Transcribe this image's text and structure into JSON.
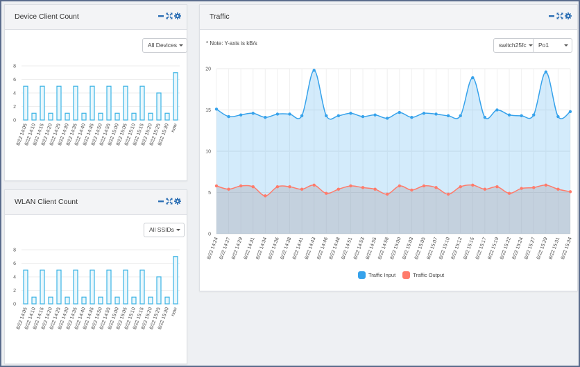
{
  "device_panel": {
    "title": "Device Client Count",
    "filter": "All Devices",
    "chart_data": {
      "type": "bar",
      "categories": [
        "8/22 14:05",
        "8/22 14:10",
        "8/22 14:15",
        "8/22 14:20",
        "8/22 14:25",
        "8/22 14:30",
        "8/22 14:35",
        "8/22 14:40",
        "8/22 14:45",
        "8/22 14:50",
        "8/22 14:55",
        "8/22 15:00",
        "8/22 15:05",
        "8/22 15:10",
        "8/22 15:15",
        "8/22 15:20",
        "8/22 15:25",
        "8/22 15:30",
        "now"
      ],
      "values": [
        5,
        1,
        5,
        1,
        5,
        1,
        5,
        1,
        5,
        1,
        5,
        1,
        5,
        1,
        5,
        1,
        4,
        1,
        7
      ],
      "yticks": [
        0,
        2,
        4,
        6,
        8
      ],
      "ylim": [
        0,
        8
      ],
      "colors": {
        "bar_fill": "#e9f7fc",
        "bar_stroke": "#3bb4e5"
      }
    }
  },
  "wlan_panel": {
    "title": "WLAN Client Count",
    "filter": "All SSIDs",
    "chart_data": {
      "type": "bar",
      "categories": [
        "8/22 14:05",
        "8/22 14:10",
        "8/22 14:15",
        "8/22 14:20",
        "8/22 14:25",
        "8/22 14:30",
        "8/22 14:35",
        "8/22 14:40",
        "8/22 14:45",
        "8/22 14:50",
        "8/22 14:55",
        "8/22 15:00",
        "8/22 15:05",
        "8/22 15:10",
        "8/22 15:15",
        "8/22 15:20",
        "8/22 15:25",
        "8/22 15:30",
        "now"
      ],
      "values": [
        5,
        1,
        5,
        1,
        5,
        1,
        5,
        1,
        5,
        1,
        5,
        1,
        5,
        1,
        5,
        1,
        4,
        1,
        7
      ],
      "yticks": [
        0,
        2,
        4,
        6,
        8
      ],
      "ylim": [
        0,
        8
      ],
      "colors": {
        "bar_fill": "#e9f7fc",
        "bar_stroke": "#3bb4e5"
      }
    }
  },
  "traffic_panel": {
    "title": "Traffic",
    "note": "* Note: Y-axis is kB/s",
    "switch_filter": "switch25fc",
    "port_filter": "Po1",
    "chart_data": {
      "type": "area",
      "x": [
        "8/22 14:24",
        "8/22 14:27",
        "8/22 14:29",
        "8/22 14:31",
        "8/22 14:34",
        "8/22 14:36",
        "8/22 14:38",
        "8/22 14:41",
        "8/22 14:43",
        "8/22 14:46",
        "8/22 14:48",
        "8/22 14:51",
        "8/22 14:53",
        "8/22 14:55",
        "8/22 14:58",
        "8/22 15:00",
        "8/22 15:03",
        "8/22 15:05",
        "8/22 15:07",
        "8/22 15:10",
        "8/22 15:12",
        "8/22 15:15",
        "8/22 15:17",
        "8/22 15:19",
        "8/22 15:22",
        "8/22 15:24",
        "8/22 15:27",
        "8/22 15:29",
        "8/22 15:31",
        "8/22 15:34"
      ],
      "yticks": [
        0,
        5,
        10,
        15,
        20
      ],
      "ylim": [
        0,
        20
      ],
      "series": [
        {
          "name": "Traffic Input",
          "color": "#36a2eb",
          "values": [
            15.1,
            14.2,
            14.4,
            14.6,
            14.1,
            14.5,
            14.5,
            14.3,
            19.8,
            14.3,
            14.3,
            14.6,
            14.2,
            14.4,
            14.0,
            14.7,
            14.1,
            14.6,
            14.5,
            14.3,
            14.3,
            18.9,
            14.1,
            15.0,
            14.4,
            14.3,
            14.4,
            19.6,
            14.2,
            14.8
          ]
        },
        {
          "name": "Traffic Output",
          "color": "#ff7b6b",
          "values": [
            5.8,
            5.4,
            5.8,
            5.7,
            4.6,
            5.7,
            5.7,
            5.4,
            5.9,
            4.9,
            5.4,
            5.8,
            5.6,
            5.4,
            4.8,
            5.8,
            5.3,
            5.8,
            5.6,
            4.8,
            5.7,
            5.9,
            5.4,
            5.7,
            4.9,
            5.5,
            5.6,
            5.9,
            5.4,
            5.1
          ]
        }
      ]
    }
  }
}
